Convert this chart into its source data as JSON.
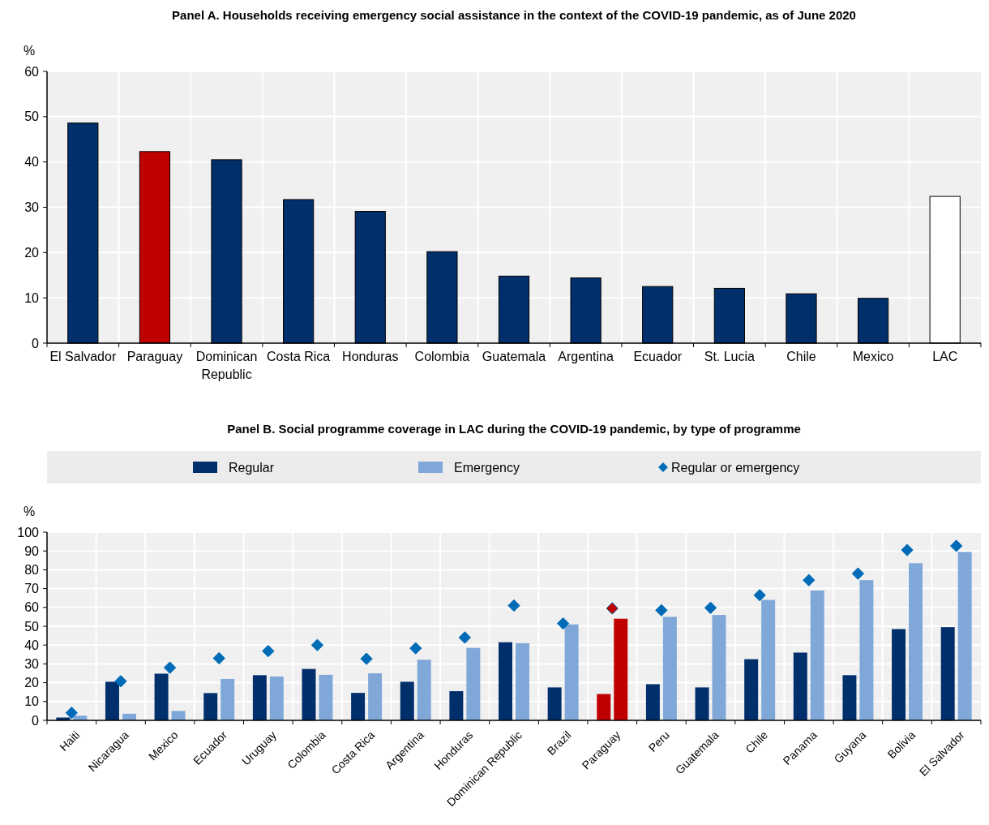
{
  "chart_data": [
    {
      "type": "bar",
      "title": "Panel A. Households receiving emergency social assistance in the context of the COVID-19 pandemic, as of June 2020",
      "ylabel": "%",
      "categories": [
        "El Salvador",
        "Paraguay",
        "Dominican Republic",
        "Costa Rica",
        "Honduras",
        "Colombia",
        "Guatemala",
        "Argentina",
        "Ecuador",
        "St. Lucia",
        "Chile",
        "Mexico",
        "LAC"
      ],
      "values": [
        48.6,
        42.3,
        40.5,
        31.7,
        29.1,
        20.2,
        14.8,
        14.4,
        12.5,
        12.1,
        10.9,
        9.9,
        32.4
      ],
      "colors": [
        "#002f6c",
        "#c00000",
        "#002f6c",
        "#002f6c",
        "#002f6c",
        "#002f6c",
        "#002f6c",
        "#002f6c",
        "#002f6c",
        "#002f6c",
        "#002f6c",
        "#002f6c",
        "#ffffff"
      ],
      "ylim": [
        0,
        60
      ],
      "yticks": [
        0,
        10,
        20,
        30,
        40,
        50,
        60
      ],
      "grid": true
    },
    {
      "type": "bar",
      "title": "Panel B. Social programme coverage in LAC during the COVID-19 pandemic, by type of programme",
      "ylabel": "%",
      "categories": [
        "Haiti",
        "Nicaragua",
        "Mexico",
        "Ecuador",
        "Uruguay",
        "Colombia",
        "Costa Rica",
        "Argentina",
        "Honduras",
        "Dominican Republic",
        "Brazil",
        "Paraguay",
        "Peru",
        "Guatemala",
        "Chile",
        "Panama",
        "Guyana",
        "Bolivia",
        "El Salvador"
      ],
      "series": [
        {
          "name": "Regular",
          "color": "#002f6c",
          "colors": [
            "#002f6c",
            "#002f6c",
            "#002f6c",
            "#002f6c",
            "#002f6c",
            "#002f6c",
            "#002f6c",
            "#002f6c",
            "#002f6c",
            "#002f6c",
            "#002f6c",
            "#c00000",
            "#002f6c",
            "#002f6c",
            "#002f6c",
            "#002f6c",
            "#002f6c",
            "#002f6c",
            "#002f6c"
          ],
          "values": [
            1.5,
            20.5,
            24.8,
            14.5,
            24,
            27.3,
            14.6,
            20.5,
            15.5,
            41.5,
            17.5,
            14,
            19.2,
            17.5,
            32.5,
            36,
            24,
            48.5,
            49.5
          ]
        },
        {
          "name": "Emergency",
          "color": "#7fa8d9",
          "colors": [
            "#7fa8d9",
            "#7fa8d9",
            "#7fa8d9",
            "#7fa8d9",
            "#7fa8d9",
            "#7fa8d9",
            "#7fa8d9",
            "#7fa8d9",
            "#7fa8d9",
            "#7fa8d9",
            "#7fa8d9",
            "#c00000",
            "#7fa8d9",
            "#7fa8d9",
            "#7fa8d9",
            "#7fa8d9",
            "#7fa8d9",
            "#7fa8d9",
            "#7fa8d9"
          ],
          "values": [
            2.5,
            3.5,
            5,
            22,
            23.3,
            24.2,
            25,
            32.2,
            38.5,
            41,
            51,
            54,
            55,
            56,
            64,
            69,
            74.5,
            83.5,
            89.5
          ]
        },
        {
          "name": "Regular or emergency",
          "type": "scatter",
          "marker": "diamond",
          "color": "#006bb6",
          "colors": [
            "#006bb6",
            "#006bb6",
            "#006bb6",
            "#006bb6",
            "#006bb6",
            "#006bb6",
            "#006bb6",
            "#006bb6",
            "#006bb6",
            "#006bb6",
            "#006bb6",
            "#c00000",
            "#006bb6",
            "#006bb6",
            "#006bb6",
            "#006bb6",
            "#006bb6",
            "#006bb6",
            "#006bb6"
          ],
          "x": [
            "Haiti",
            "Nicaragua",
            "Mexico",
            "Ecuador",
            "Uruguay",
            "Colombia",
            "Costa Rica",
            "Argentina",
            "Honduras",
            "Dominican Republic",
            "Brazil",
            "Paraguay",
            "Peru",
            "Guatemala",
            "Chile",
            "Panama",
            "Guyana",
            "Bolivia",
            "El Salvador"
          ],
          "values": [
            4,
            20.8,
            28,
            33,
            36.8,
            40,
            32.7,
            38.3,
            44,
            61,
            51.5,
            59.5,
            58.5,
            59.8,
            66.5,
            74.5,
            78,
            90.5,
            92.7
          ]
        }
      ],
      "ylim": [
        0,
        100
      ],
      "yticks": [
        0,
        10,
        20,
        30,
        40,
        50,
        60,
        70,
        80,
        90,
        100
      ],
      "grid": true,
      "legend": "top"
    }
  ]
}
